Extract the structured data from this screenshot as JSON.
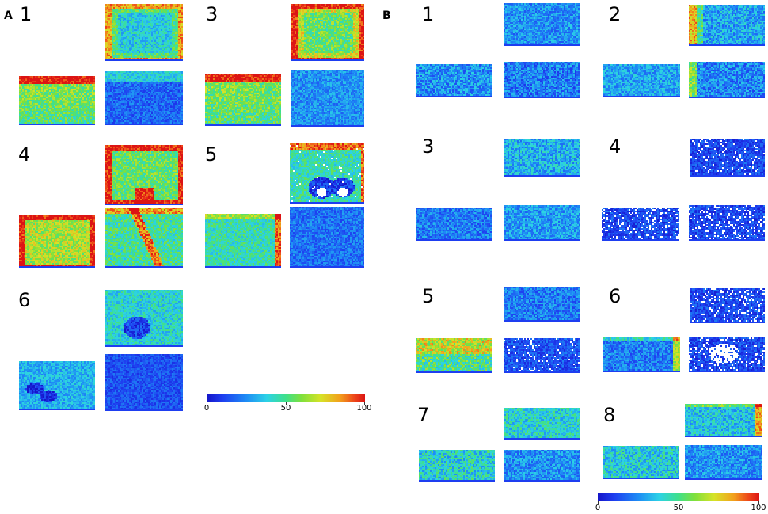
{
  "panels": [
    {
      "letter": "A",
      "groups": [
        "1",
        "3",
        "4",
        "5",
        "6"
      ]
    },
    {
      "letter": "B",
      "groups": [
        "1",
        "2",
        "3",
        "4",
        "5",
        "6",
        "7",
        "8"
      ]
    }
  ],
  "colorbars": [
    {
      "panel": "A",
      "min": "0",
      "mid": "50",
      "max": "100"
    },
    {
      "panel": "B",
      "min": "0",
      "mid": "50",
      "max": "100"
    }
  ],
  "colormap": [
    "#1515c8",
    "#1e8cf5",
    "#2cd2e6",
    "#3fe08a",
    "#d6e327",
    "#f2a11c",
    "#dc1414"
  ]
}
